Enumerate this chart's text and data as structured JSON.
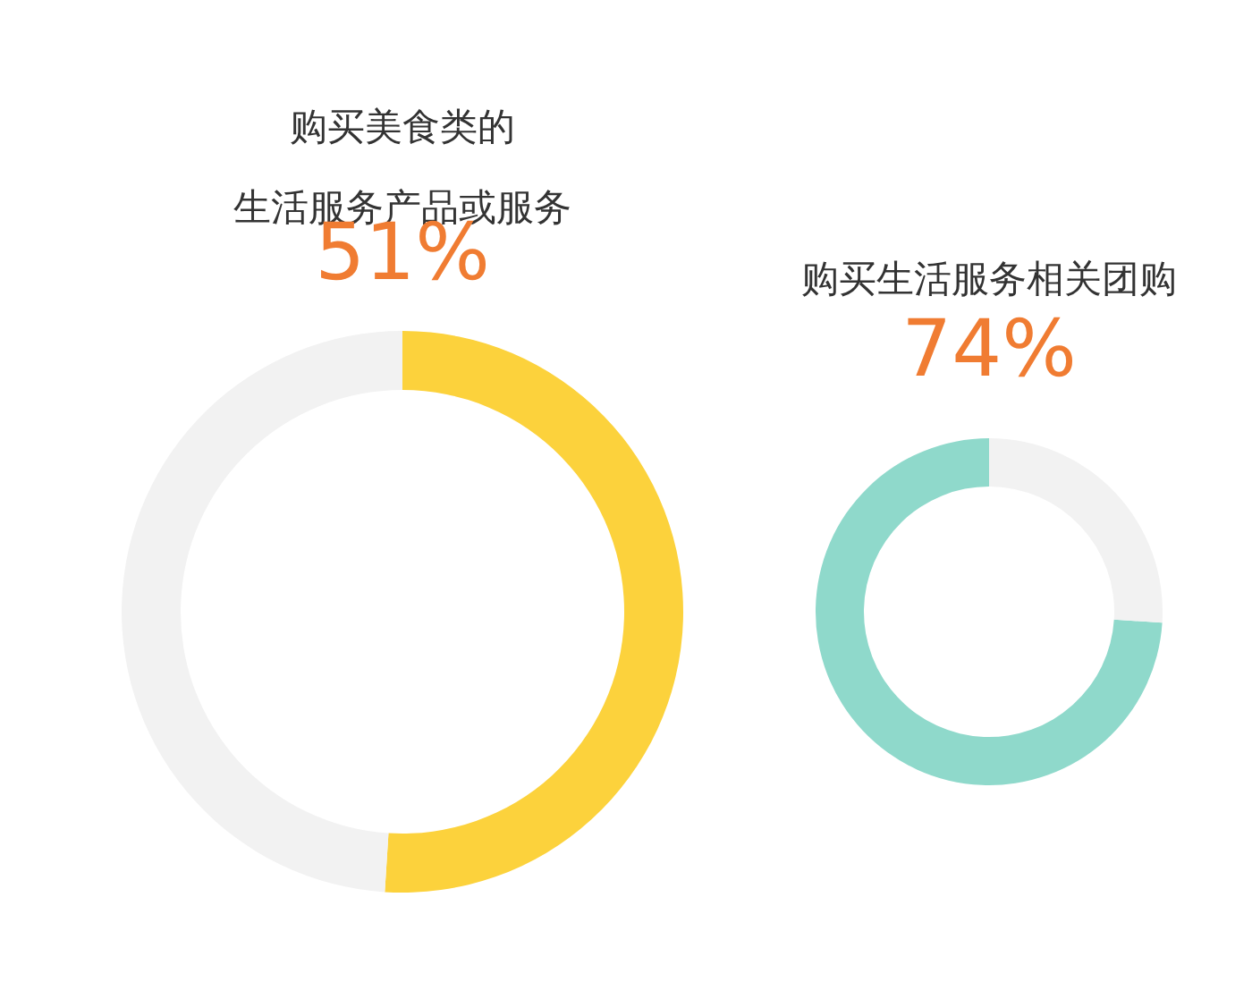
{
  "chart_data": [
    {
      "type": "donut",
      "title": "购买美食类的",
      "subtitle": "生活服务产品或服务",
      "categories": [
        null,
        null
      ],
      "values": [
        51,
        49
      ],
      "colors": [
        "#fcd23c",
        "#f2f2f2"
      ],
      "annotations": [
        "51%"
      ]
    },
    {
      "type": "donut",
      "title": "购买生活服务相关团购",
      "categories": [
        null,
        null
      ],
      "values": [
        74,
        26
      ],
      "colors": [
        "#8fd9cb",
        "#f2f2f2"
      ],
      "annotations": [
        "74%"
      ]
    }
  ]
}
